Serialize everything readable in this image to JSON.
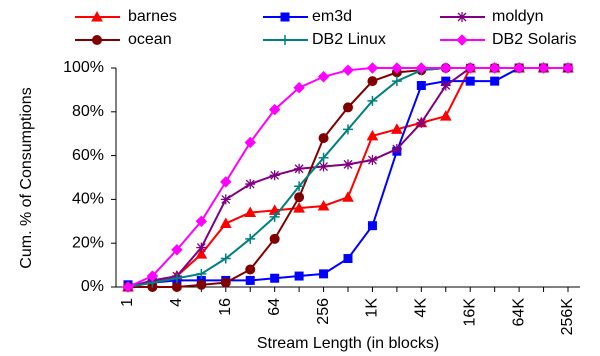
{
  "chart_data": {
    "type": "line",
    "x_label": "Stream Length (in blocks)",
    "y_label": "Cum. % of Consumptions",
    "categories": [
      "1",
      null,
      "4",
      null,
      "16",
      null,
      "64",
      null,
      "256",
      null,
      "1K",
      null,
      "4K",
      null,
      "16K",
      null,
      "64K",
      null,
      "256K"
    ],
    "ylim": [
      0,
      100
    ],
    "yticks": [
      {
        "value": 0,
        "label": "0%"
      },
      {
        "value": 20,
        "label": "20%"
      },
      {
        "value": 40,
        "label": "40%"
      },
      {
        "value": 60,
        "label": "60%"
      },
      {
        "value": 80,
        "label": "80%"
      },
      {
        "value": 100,
        "label": "100%"
      }
    ],
    "grid": false,
    "legend": "top",
    "series": [
      {
        "name": "barnes",
        "color": "#ff0000",
        "marker": "triangle",
        "values": [
          0,
          2,
          5,
          15,
          29,
          34,
          35,
          36,
          37,
          41,
          69,
          72,
          75,
          78,
          100,
          100,
          100,
          100,
          100
        ]
      },
      {
        "name": "em3d",
        "color": "#0000ff",
        "marker": "square",
        "values": [
          1,
          2,
          3,
          3,
          3,
          3,
          4,
          5,
          6,
          13,
          28,
          62,
          92,
          94,
          94,
          94,
          100,
          100,
          100
        ]
      },
      {
        "name": "moldyn",
        "color": "#800080",
        "marker": "star",
        "values": [
          0,
          3,
          5,
          18,
          40,
          47,
          51,
          54,
          55,
          56,
          58,
          63,
          75,
          92,
          100,
          100,
          100,
          100,
          100
        ]
      },
      {
        "name": "ocean",
        "color": "#800000",
        "marker": "circle",
        "values": [
          0,
          0,
          0,
          1,
          2,
          8,
          22,
          41,
          68,
          82,
          94,
          98,
          99,
          100,
          100,
          100,
          100,
          100,
          100
        ]
      },
      {
        "name": "DB2 Linux",
        "color": "#008080",
        "marker": "plus",
        "values": [
          0,
          2,
          4,
          6,
          13,
          22,
          32,
          46,
          59,
          72,
          85,
          94,
          99,
          100,
          100,
          100,
          100,
          100,
          100
        ]
      },
      {
        "name": "DB2 Solaris",
        "color": "#ff00ff",
        "marker": "diamond",
        "values": [
          0,
          5,
          17,
          30,
          48,
          66,
          81,
          91,
          96,
          99,
          100,
          100,
          100,
          100,
          100,
          100,
          100,
          100,
          100
        ]
      }
    ]
  }
}
